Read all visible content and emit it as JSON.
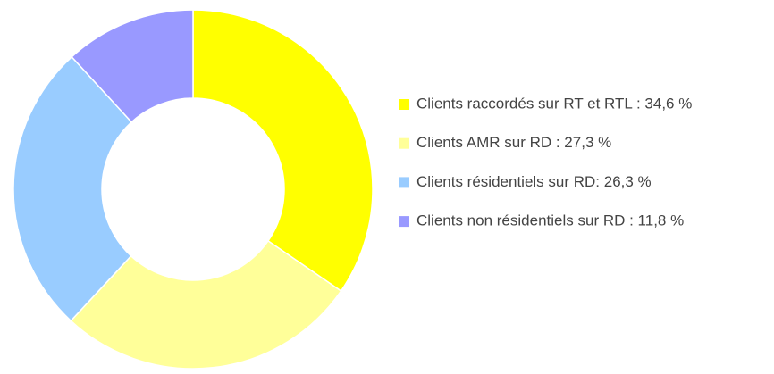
{
  "chart_data": {
    "type": "donut",
    "categories": [
      "Clients raccordés sur RT et RTL : 34,6 %",
      "Clients AMR sur RD : 27,3 %",
      "Clients résidentiels sur RD: 26,3 %",
      "Clients non résidentiels sur RD : 11,8 %"
    ],
    "values": [
      34.6,
      27.3,
      26.3,
      11.8
    ],
    "colors": [
      "#ffff00",
      "#ffff99",
      "#99ccff",
      "#9999ff"
    ],
    "legend": "right"
  }
}
